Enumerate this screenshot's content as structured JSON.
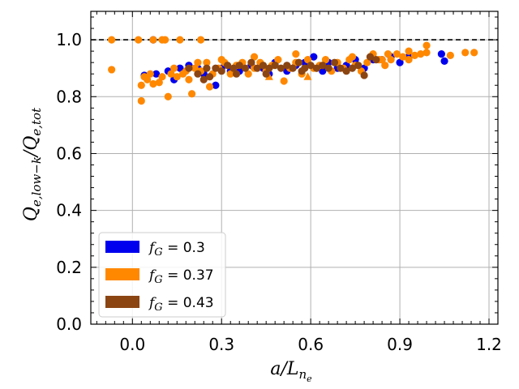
{
  "chart_data": {
    "type": "scatter",
    "title": "",
    "xlabel": "a/L_{n_e}",
    "xlabel_parts": {
      "main": "a/L",
      "sub": "n",
      "subsub": "e"
    },
    "ylabel": "Q_{e,low-k}/Q_{e,tot}",
    "ylabel_parts": {
      "main": "Q",
      "sub_top": "e,low−k",
      "mid": "/Q",
      "sub_bottom": "e,tot"
    },
    "xlim": [
      -0.14,
      1.23
    ],
    "ylim": [
      0.0,
      1.1
    ],
    "xticks": [
      0.0,
      0.3,
      0.6,
      0.9,
      1.2
    ],
    "xtick_labels": [
      "0.0",
      "0.3",
      "0.6",
      "0.9",
      "1.2"
    ],
    "yticks": [
      0.0,
      0.2,
      0.4,
      0.6,
      0.8,
      1.0
    ],
    "ytick_labels": [
      "0.0",
      "0.2",
      "0.4",
      "0.6",
      "0.8",
      "1.0"
    ],
    "grid": true,
    "reference_line": {
      "y": 1.0,
      "style": "dashed"
    },
    "legend": {
      "position": "lower-left",
      "entries": [
        {
          "label_main": "f",
          "label_sub": "G",
          "label_rest": " = 0.3",
          "color": "#0000ee"
        },
        {
          "label_main": "f",
          "label_sub": "G",
          "label_rest": " = 0.37",
          "color": "#ff8800"
        },
        {
          "label_main": "f",
          "label_sub": "G",
          "label_rest": " = 0.43",
          "color": "#8b4513"
        }
      ]
    },
    "series": [
      {
        "name": "f_G = 0.3",
        "color": "#0000ee",
        "points": [
          [
            0.07,
            1.0
          ],
          [
            0.04,
            0.875
          ],
          [
            0.08,
            0.88
          ],
          [
            0.12,
            0.89
          ],
          [
            0.14,
            0.86
          ],
          [
            0.16,
            0.9
          ],
          [
            0.19,
            0.91
          ],
          [
            0.22,
            0.9
          ],
          [
            0.24,
            0.88
          ],
          [
            0.28,
            0.84
          ],
          [
            0.3,
            0.9
          ],
          [
            0.33,
            0.89
          ],
          [
            0.36,
            0.89
          ],
          [
            0.4,
            0.91
          ],
          [
            0.44,
            0.9
          ],
          [
            0.48,
            0.92
          ],
          [
            0.52,
            0.89
          ],
          [
            0.55,
            0.91
          ],
          [
            0.58,
            0.92
          ],
          [
            0.61,
            0.94
          ],
          [
            0.64,
            0.89
          ],
          [
            0.66,
            0.92
          ],
          [
            0.69,
            0.9
          ],
          [
            0.72,
            0.91
          ],
          [
            0.75,
            0.93
          ],
          [
            0.78,
            0.9
          ],
          [
            0.81,
            0.93
          ],
          [
            0.84,
            0.93
          ],
          [
            0.87,
            0.94
          ],
          [
            0.9,
            0.92
          ],
          [
            0.93,
            0.94
          ],
          [
            1.04,
            0.95
          ],
          [
            1.05,
            0.925
          ],
          [
            0.46,
            0.88
          ],
          [
            0.35,
            0.9
          ]
        ]
      },
      {
        "name": "f_G = 0.37",
        "color": "#ff8800",
        "points": [
          [
            -0.07,
            1.0
          ],
          [
            -0.07,
            0.895
          ],
          [
            0.02,
            1.0
          ],
          [
            0.07,
            1.0
          ],
          [
            0.1,
            1.0
          ],
          [
            0.11,
            1.0
          ],
          [
            0.16,
            1.0
          ],
          [
            0.23,
            1.0
          ],
          [
            0.03,
            0.785
          ],
          [
            0.03,
            0.84
          ],
          [
            0.12,
            0.8
          ],
          [
            0.2,
            0.81
          ],
          [
            0.26,
            0.835
          ],
          [
            0.05,
            0.86
          ],
          [
            0.07,
            0.845
          ],
          [
            0.09,
            0.85
          ],
          [
            0.04,
            0.87
          ],
          [
            0.06,
            0.88
          ],
          [
            0.1,
            0.87
          ],
          [
            0.13,
            0.88
          ],
          [
            0.15,
            0.87
          ],
          [
            0.17,
            0.88
          ],
          [
            0.19,
            0.86
          ],
          [
            0.21,
            0.9
          ],
          [
            0.23,
            0.89
          ],
          [
            0.25,
            0.92
          ],
          [
            0.27,
            0.88
          ],
          [
            0.29,
            0.9
          ],
          [
            0.31,
            0.92
          ],
          [
            0.33,
            0.88
          ],
          [
            0.35,
            0.91
          ],
          [
            0.37,
            0.92
          ],
          [
            0.39,
            0.88
          ],
          [
            0.41,
            0.9
          ],
          [
            0.43,
            0.92
          ],
          [
            0.45,
            0.89
          ],
          [
            0.47,
            0.91
          ],
          [
            0.49,
            0.93
          ],
          [
            0.51,
            0.855
          ],
          [
            0.53,
            0.9
          ],
          [
            0.55,
            0.92
          ],
          [
            0.57,
            0.88
          ],
          [
            0.59,
            0.93
          ],
          [
            0.61,
            0.9
          ],
          [
            0.63,
            0.91
          ],
          [
            0.65,
            0.93
          ],
          [
            0.67,
            0.89
          ],
          [
            0.69,
            0.92
          ],
          [
            0.71,
            0.9
          ],
          [
            0.73,
            0.93
          ],
          [
            0.75,
            0.91
          ],
          [
            0.77,
            0.89
          ],
          [
            0.79,
            0.92
          ],
          [
            0.81,
            0.95
          ],
          [
            0.83,
            0.93
          ],
          [
            0.85,
            0.91
          ],
          [
            0.87,
            0.93
          ],
          [
            0.89,
            0.95
          ],
          [
            0.91,
            0.94
          ],
          [
            0.93,
            0.93
          ],
          [
            0.95,
            0.945
          ],
          [
            0.97,
            0.95
          ],
          [
            0.99,
            0.98
          ],
          [
            0.99,
            0.955
          ],
          [
            1.07,
            0.945
          ],
          [
            1.12,
            0.955
          ],
          [
            1.15,
            0.955
          ],
          [
            0.86,
            0.95
          ],
          [
            0.84,
            0.93
          ],
          [
            0.3,
            0.93
          ],
          [
            0.41,
            0.94
          ],
          [
            0.22,
            0.92
          ],
          [
            0.18,
            0.89
          ],
          [
            0.14,
            0.9
          ],
          [
            0.55,
            0.95
          ],
          [
            0.62,
            0.9
          ],
          [
            0.74,
            0.94
          ],
          [
            0.93,
            0.96
          ]
        ],
        "triangles": [
          [
            0.59,
            0.87
          ],
          [
            0.46,
            0.87
          ]
        ]
      },
      {
        "name": "f_G = 0.43",
        "color": "#8b4513",
        "points": [
          [
            0.19,
            0.9
          ],
          [
            0.22,
            0.88
          ],
          [
            0.24,
            0.86
          ],
          [
            0.26,
            0.87
          ],
          [
            0.28,
            0.9
          ],
          [
            0.3,
            0.89
          ],
          [
            0.32,
            0.91
          ],
          [
            0.34,
            0.9
          ],
          [
            0.36,
            0.91
          ],
          [
            0.38,
            0.9
          ],
          [
            0.4,
            0.92
          ],
          [
            0.42,
            0.9
          ],
          [
            0.44,
            0.91
          ],
          [
            0.46,
            0.9
          ],
          [
            0.48,
            0.91
          ],
          [
            0.5,
            0.9
          ],
          [
            0.52,
            0.91
          ],
          [
            0.54,
            0.9
          ],
          [
            0.56,
            0.92
          ],
          [
            0.58,
            0.9
          ],
          [
            0.6,
            0.91
          ],
          [
            0.62,
            0.9
          ],
          [
            0.64,
            0.91
          ],
          [
            0.66,
            0.9
          ],
          [
            0.68,
            0.92
          ],
          [
            0.7,
            0.9
          ],
          [
            0.72,
            0.89
          ],
          [
            0.74,
            0.9
          ],
          [
            0.76,
            0.91
          ],
          [
            0.78,
            0.875
          ],
          [
            0.8,
            0.94
          ],
          [
            0.82,
            0.93
          ],
          [
            0.25,
            0.9
          ],
          [
            0.35,
            0.88
          ],
          [
            0.45,
            0.88
          ],
          [
            0.57,
            0.89
          ]
        ]
      }
    ]
  }
}
